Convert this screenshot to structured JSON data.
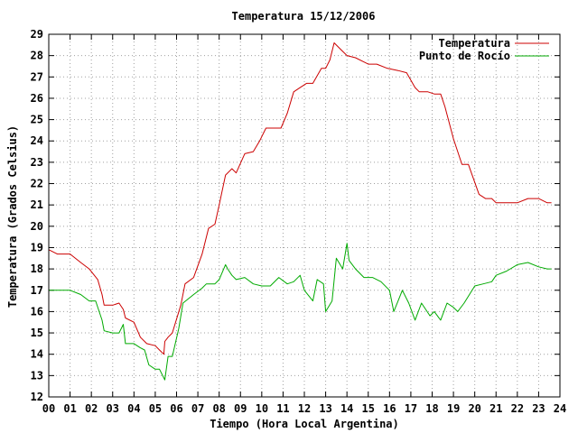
{
  "chart_data": {
    "type": "line",
    "title": "Temperatura 15/12/2006",
    "xlabel": "Tiempo (Hora Local Argentina)",
    "ylabel": "Temperatura (Grados Celsius)",
    "xlim": [
      0,
      24
    ],
    "ylim": [
      12,
      29
    ],
    "xticks": [
      "00",
      "01",
      "02",
      "03",
      "04",
      "05",
      "06",
      "07",
      "08",
      "09",
      "10",
      "11",
      "12",
      "13",
      "14",
      "15",
      "16",
      "17",
      "18",
      "19",
      "20",
      "21",
      "22",
      "23",
      "24"
    ],
    "yticks": [
      12,
      13,
      14,
      15,
      16,
      17,
      18,
      19,
      20,
      21,
      22,
      23,
      24,
      25,
      26,
      27,
      28,
      29
    ],
    "grid": true,
    "legend_position": "top-right",
    "series": [
      {
        "name": "Temperatura",
        "color": "#cc0000",
        "x": [
          0,
          0.4,
          1.0,
          1.5,
          1.9,
          2.3,
          2.5,
          2.6,
          3.0,
          3.3,
          3.5,
          3.6,
          4.0,
          4.3,
          4.6,
          5.0,
          5.2,
          5.4,
          5.45,
          5.6,
          5.8,
          6.2,
          6.4,
          6.8,
          7.2,
          7.5,
          7.8,
          8.0,
          8.3,
          8.6,
          8.8,
          9.2,
          9.6,
          9.9,
          10.2,
          10.5,
          10.9,
          11.2,
          11.5,
          11.8,
          12.1,
          12.4,
          12.8,
          13.0,
          13.2,
          13.4,
          13.7,
          14.0,
          14.4,
          14.8,
          15.0,
          15.4,
          15.9,
          16.4,
          16.8,
          17.2,
          17.4,
          17.8,
          18.1,
          18.4,
          18.6,
          19.0,
          19.4,
          19.7,
          20.2,
          20.5,
          20.8,
          21.0,
          21.4,
          22.0,
          22.5,
          23.0,
          23.4,
          23.6
        ],
        "values": [
          18.9,
          18.7,
          18.7,
          18.3,
          18.0,
          17.5,
          16.8,
          16.3,
          16.3,
          16.4,
          16.1,
          15.7,
          15.5,
          14.8,
          14.5,
          14.4,
          14.2,
          14.0,
          14.6,
          14.8,
          15.0,
          16.3,
          17.3,
          17.6,
          18.7,
          19.9,
          20.1,
          21.0,
          22.4,
          22.7,
          22.5,
          23.4,
          23.5,
          24.0,
          24.6,
          24.6,
          24.6,
          25.3,
          26.3,
          26.5,
          26.7,
          26.7,
          27.4,
          27.4,
          27.8,
          28.6,
          28.3,
          28.0,
          27.9,
          27.7,
          27.6,
          27.6,
          27.4,
          27.3,
          27.2,
          26.5,
          26.3,
          26.3,
          26.2,
          26.2,
          25.6,
          24.1,
          22.9,
          22.9,
          21.5,
          21.3,
          21.3,
          21.1,
          21.1,
          21.1,
          21.3,
          21.3,
          21.1,
          21.1
        ]
      },
      {
        "name": "Punto de Rocío",
        "color": "#00aa00",
        "x": [
          0,
          0.4,
          1.0,
          1.5,
          1.9,
          2.2,
          2.5,
          2.6,
          3.0,
          3.3,
          3.5,
          3.6,
          4.0,
          4.3,
          4.5,
          4.7,
          5.0,
          5.2,
          5.45,
          5.6,
          5.8,
          6.1,
          6.3,
          6.8,
          7.2,
          7.4,
          7.8,
          8.0,
          8.3,
          8.4,
          8.6,
          8.8,
          9.2,
          9.6,
          10.0,
          10.4,
          10.8,
          11.2,
          11.5,
          11.8,
          12.0,
          12.4,
          12.6,
          12.9,
          13.0,
          13.3,
          13.5,
          13.8,
          14.0,
          14.1,
          14.4,
          14.8,
          15.2,
          15.6,
          16.0,
          16.2,
          16.4,
          16.6,
          16.9,
          17.2,
          17.5,
          17.9,
          18.1,
          18.4,
          18.7,
          19.0,
          19.2,
          19.5,
          20.0,
          20.4,
          20.8,
          21.0,
          21.5,
          22.0,
          22.5,
          23.0,
          23.4,
          23.6
        ],
        "values": [
          17.0,
          17.0,
          17.0,
          16.8,
          16.5,
          16.5,
          15.6,
          15.1,
          15.0,
          15.0,
          15.4,
          14.5,
          14.5,
          14.3,
          14.2,
          13.5,
          13.3,
          13.3,
          12.8,
          13.9,
          13.9,
          15.2,
          16.4,
          16.8,
          17.1,
          17.3,
          17.3,
          17.5,
          18.2,
          18.0,
          17.7,
          17.5,
          17.6,
          17.3,
          17.2,
          17.2,
          17.6,
          17.3,
          17.4,
          17.7,
          17.0,
          16.5,
          17.5,
          17.3,
          16.0,
          16.5,
          18.5,
          18.0,
          19.2,
          18.4,
          18.0,
          17.6,
          17.6,
          17.4,
          17.0,
          16.0,
          16.5,
          17.0,
          16.4,
          15.6,
          16.4,
          15.8,
          16.0,
          15.6,
          16.4,
          16.2,
          16.0,
          16.4,
          17.2,
          17.3,
          17.4,
          17.7,
          17.9,
          18.2,
          18.3,
          18.1,
          18.0,
          18.0
        ]
      }
    ]
  }
}
